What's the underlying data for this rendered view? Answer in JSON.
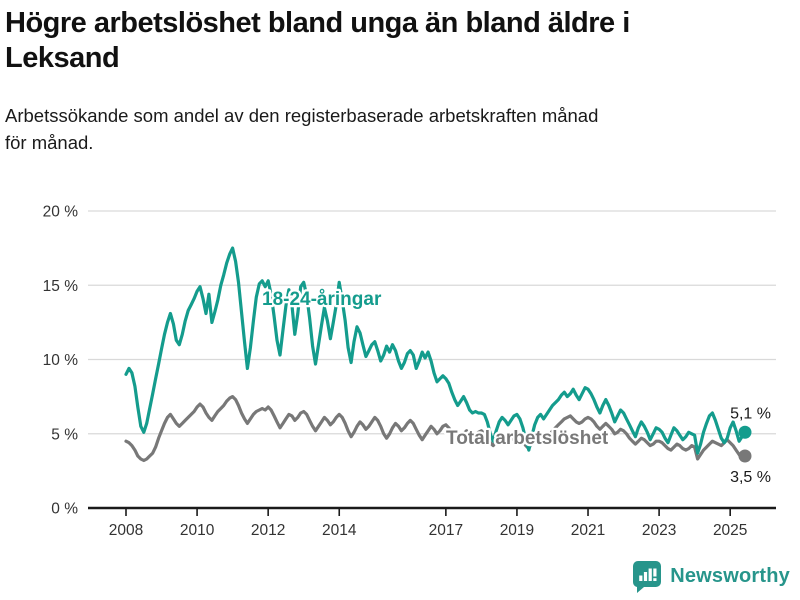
{
  "header": {
    "title_lines": [
      "Högre arbetslöshet bland unga än bland äldre i",
      "Leksand"
    ],
    "subtitle_lines": [
      "Arbetssökande som andel av den registerbaserade arbetskraften månad",
      "för månad."
    ]
  },
  "chart_data": {
    "type": "line",
    "title": "Högre arbetslöshet bland unga än bland äldre i Leksand",
    "subtitle": "Arbetssökande som andel av den registerbaserade arbetskraften månad för månad.",
    "xlabel": "",
    "ylabel": "",
    "x_start_month": "2008-01",
    "x_end_month": "2025-06",
    "x_tick_years": [
      2008,
      2010,
      2012,
      2014,
      2017,
      2019,
      2021,
      2023,
      2025
    ],
    "x_tick_labels": [
      "2008",
      "2010",
      "2012",
      "2014",
      "2017",
      "2019",
      "2021",
      "2023",
      "2025"
    ],
    "y_ticks": [
      0,
      5,
      10,
      15,
      20
    ],
    "y_tick_labels": [
      "0 %",
      "5 %",
      "10 %",
      "15 %",
      "20 %"
    ],
    "ylim": [
      0,
      20
    ],
    "grid": true,
    "legend_position": "inline-labels",
    "colors": {
      "youth_line": "#149c8d",
      "total_line": "#787878",
      "gridline": "#d9d9d9",
      "axis": "#1a1a1a",
      "tick_text": "#333333",
      "end_label_text": "#1a1a1a"
    },
    "series": [
      {
        "name": "18-24-åringar",
        "color": "#149c8d",
        "end_label": "5,1 %",
        "last_value": 5.1,
        "values": [
          9.0,
          9.4,
          9.1,
          8.2,
          6.8,
          5.5,
          5.1,
          5.7,
          6.7,
          7.7,
          8.7,
          9.7,
          10.7,
          11.7,
          12.5,
          13.1,
          12.4,
          11.3,
          11.0,
          11.7,
          12.6,
          13.3,
          13.7,
          14.1,
          14.6,
          14.9,
          14.1,
          13.1,
          14.4,
          12.5,
          13.2,
          14.0,
          15.0,
          15.7,
          16.5,
          17.1,
          17.5,
          16.6,
          15.2,
          13.2,
          11.2,
          9.4,
          10.8,
          12.6,
          14.2,
          15.1,
          15.3,
          14.9,
          15.3,
          14.4,
          12.9,
          11.3,
          10.3,
          12.0,
          13.6,
          14.7,
          13.7,
          11.7,
          13.1,
          14.9,
          15.2,
          14.3,
          12.8,
          10.9,
          9.7,
          11.0,
          12.3,
          13.5,
          12.6,
          11.4,
          12.5,
          13.7,
          15.2,
          14.0,
          12.6,
          10.8,
          9.8,
          11.2,
          12.2,
          11.8,
          11.0,
          10.2,
          10.6,
          11.0,
          11.2,
          10.6,
          9.9,
          10.3,
          10.9,
          10.5,
          11.0,
          10.6,
          9.9,
          9.4,
          9.8,
          10.4,
          10.6,
          10.3,
          9.4,
          9.9,
          10.5,
          10.1,
          10.5,
          9.9,
          9.1,
          8.5,
          8.7,
          8.9,
          8.7,
          8.4,
          7.8,
          7.3,
          6.9,
          7.2,
          7.5,
          7.1,
          6.6,
          6.4,
          6.5,
          6.4,
          6.4,
          6.3,
          5.8,
          5.0,
          4.5,
          5.2,
          5.8,
          6.1,
          5.9,
          5.6,
          5.9,
          6.2,
          6.3,
          6.0,
          5.4,
          4.6,
          3.9,
          4.8,
          5.6,
          6.1,
          6.3,
          6.0,
          6.3,
          6.6,
          6.9,
          7.1,
          7.3,
          7.6,
          7.8,
          7.5,
          7.7,
          8.0,
          7.6,
          7.3,
          7.7,
          8.1,
          8.0,
          7.7,
          7.3,
          6.8,
          6.4,
          6.9,
          7.3,
          6.9,
          6.4,
          5.8,
          6.2,
          6.6,
          6.4,
          6.0,
          5.6,
          5.2,
          4.8,
          5.4,
          5.8,
          5.5,
          5.1,
          4.6,
          5.0,
          5.4,
          5.3,
          5.1,
          4.7,
          4.4,
          4.9,
          5.4,
          5.2,
          4.9,
          4.6,
          4.8,
          5.1,
          5.0,
          4.9,
          3.7,
          4.3,
          5.1,
          5.7,
          6.2,
          6.4,
          5.9,
          5.3,
          4.7,
          4.4,
          4.7,
          5.4,
          5.8,
          5.2,
          4.5,
          4.8,
          5.1
        ]
      },
      {
        "name": "Total arbetslöshet",
        "color": "#787878",
        "end_label": "3,5 %",
        "last_value": 3.5,
        "values": [
          4.5,
          4.4,
          4.2,
          3.9,
          3.5,
          3.3,
          3.2,
          3.3,
          3.5,
          3.7,
          4.1,
          4.7,
          5.2,
          5.7,
          6.1,
          6.3,
          6.0,
          5.7,
          5.5,
          5.7,
          5.9,
          6.1,
          6.3,
          6.5,
          6.8,
          7.0,
          6.8,
          6.4,
          6.1,
          5.9,
          6.2,
          6.5,
          6.7,
          6.9,
          7.2,
          7.4,
          7.5,
          7.3,
          6.9,
          6.4,
          6.0,
          5.7,
          6.0,
          6.3,
          6.5,
          6.6,
          6.7,
          6.6,
          6.8,
          6.6,
          6.2,
          5.8,
          5.4,
          5.7,
          6.0,
          6.3,
          6.2,
          5.9,
          6.1,
          6.4,
          6.5,
          6.3,
          5.9,
          5.5,
          5.2,
          5.5,
          5.8,
          6.1,
          5.9,
          5.6,
          5.8,
          6.1,
          6.3,
          6.1,
          5.7,
          5.2,
          4.8,
          5.1,
          5.5,
          5.8,
          5.6,
          5.3,
          5.5,
          5.8,
          6.1,
          5.9,
          5.5,
          5.0,
          4.7,
          5.0,
          5.4,
          5.7,
          5.5,
          5.2,
          5.4,
          5.7,
          5.9,
          5.7,
          5.3,
          4.9,
          4.6,
          4.9,
          5.2,
          5.5,
          5.3,
          5.0,
          5.2,
          5.5,
          5.6,
          5.4,
          5.1,
          4.7,
          4.4,
          4.7,
          5.0,
          5.2,
          5.0,
          4.7,
          4.9,
          5.1,
          5.2,
          5.0,
          4.7,
          4.4,
          4.2,
          4.5,
          4.8,
          4.9,
          4.7,
          4.4,
          4.6,
          4.8,
          5.0,
          4.8,
          4.5,
          4.2,
          4.0,
          4.4,
          4.7,
          4.8,
          4.6,
          4.4,
          4.6,
          4.9,
          5.2,
          5.4,
          5.6,
          5.8,
          6.0,
          6.1,
          6.2,
          6.0,
          5.8,
          5.7,
          5.8,
          6.0,
          6.1,
          6.0,
          5.8,
          5.5,
          5.3,
          5.5,
          5.7,
          5.5,
          5.3,
          5.0,
          5.1,
          5.3,
          5.2,
          5.0,
          4.7,
          4.5,
          4.3,
          4.5,
          4.7,
          4.6,
          4.4,
          4.2,
          4.3,
          4.5,
          4.5,
          4.4,
          4.2,
          4.0,
          3.9,
          4.1,
          4.3,
          4.2,
          4.0,
          3.9,
          4.0,
          4.2,
          4.1,
          3.3,
          3.6,
          3.9,
          4.1,
          4.3,
          4.5,
          4.4,
          4.3,
          4.2,
          4.4,
          4.6,
          4.4,
          4.2,
          3.9,
          3.6,
          3.3,
          3.5
        ]
      }
    ]
  },
  "footer": {
    "brand": "Newsworthy",
    "brand_color": "#27958b"
  }
}
